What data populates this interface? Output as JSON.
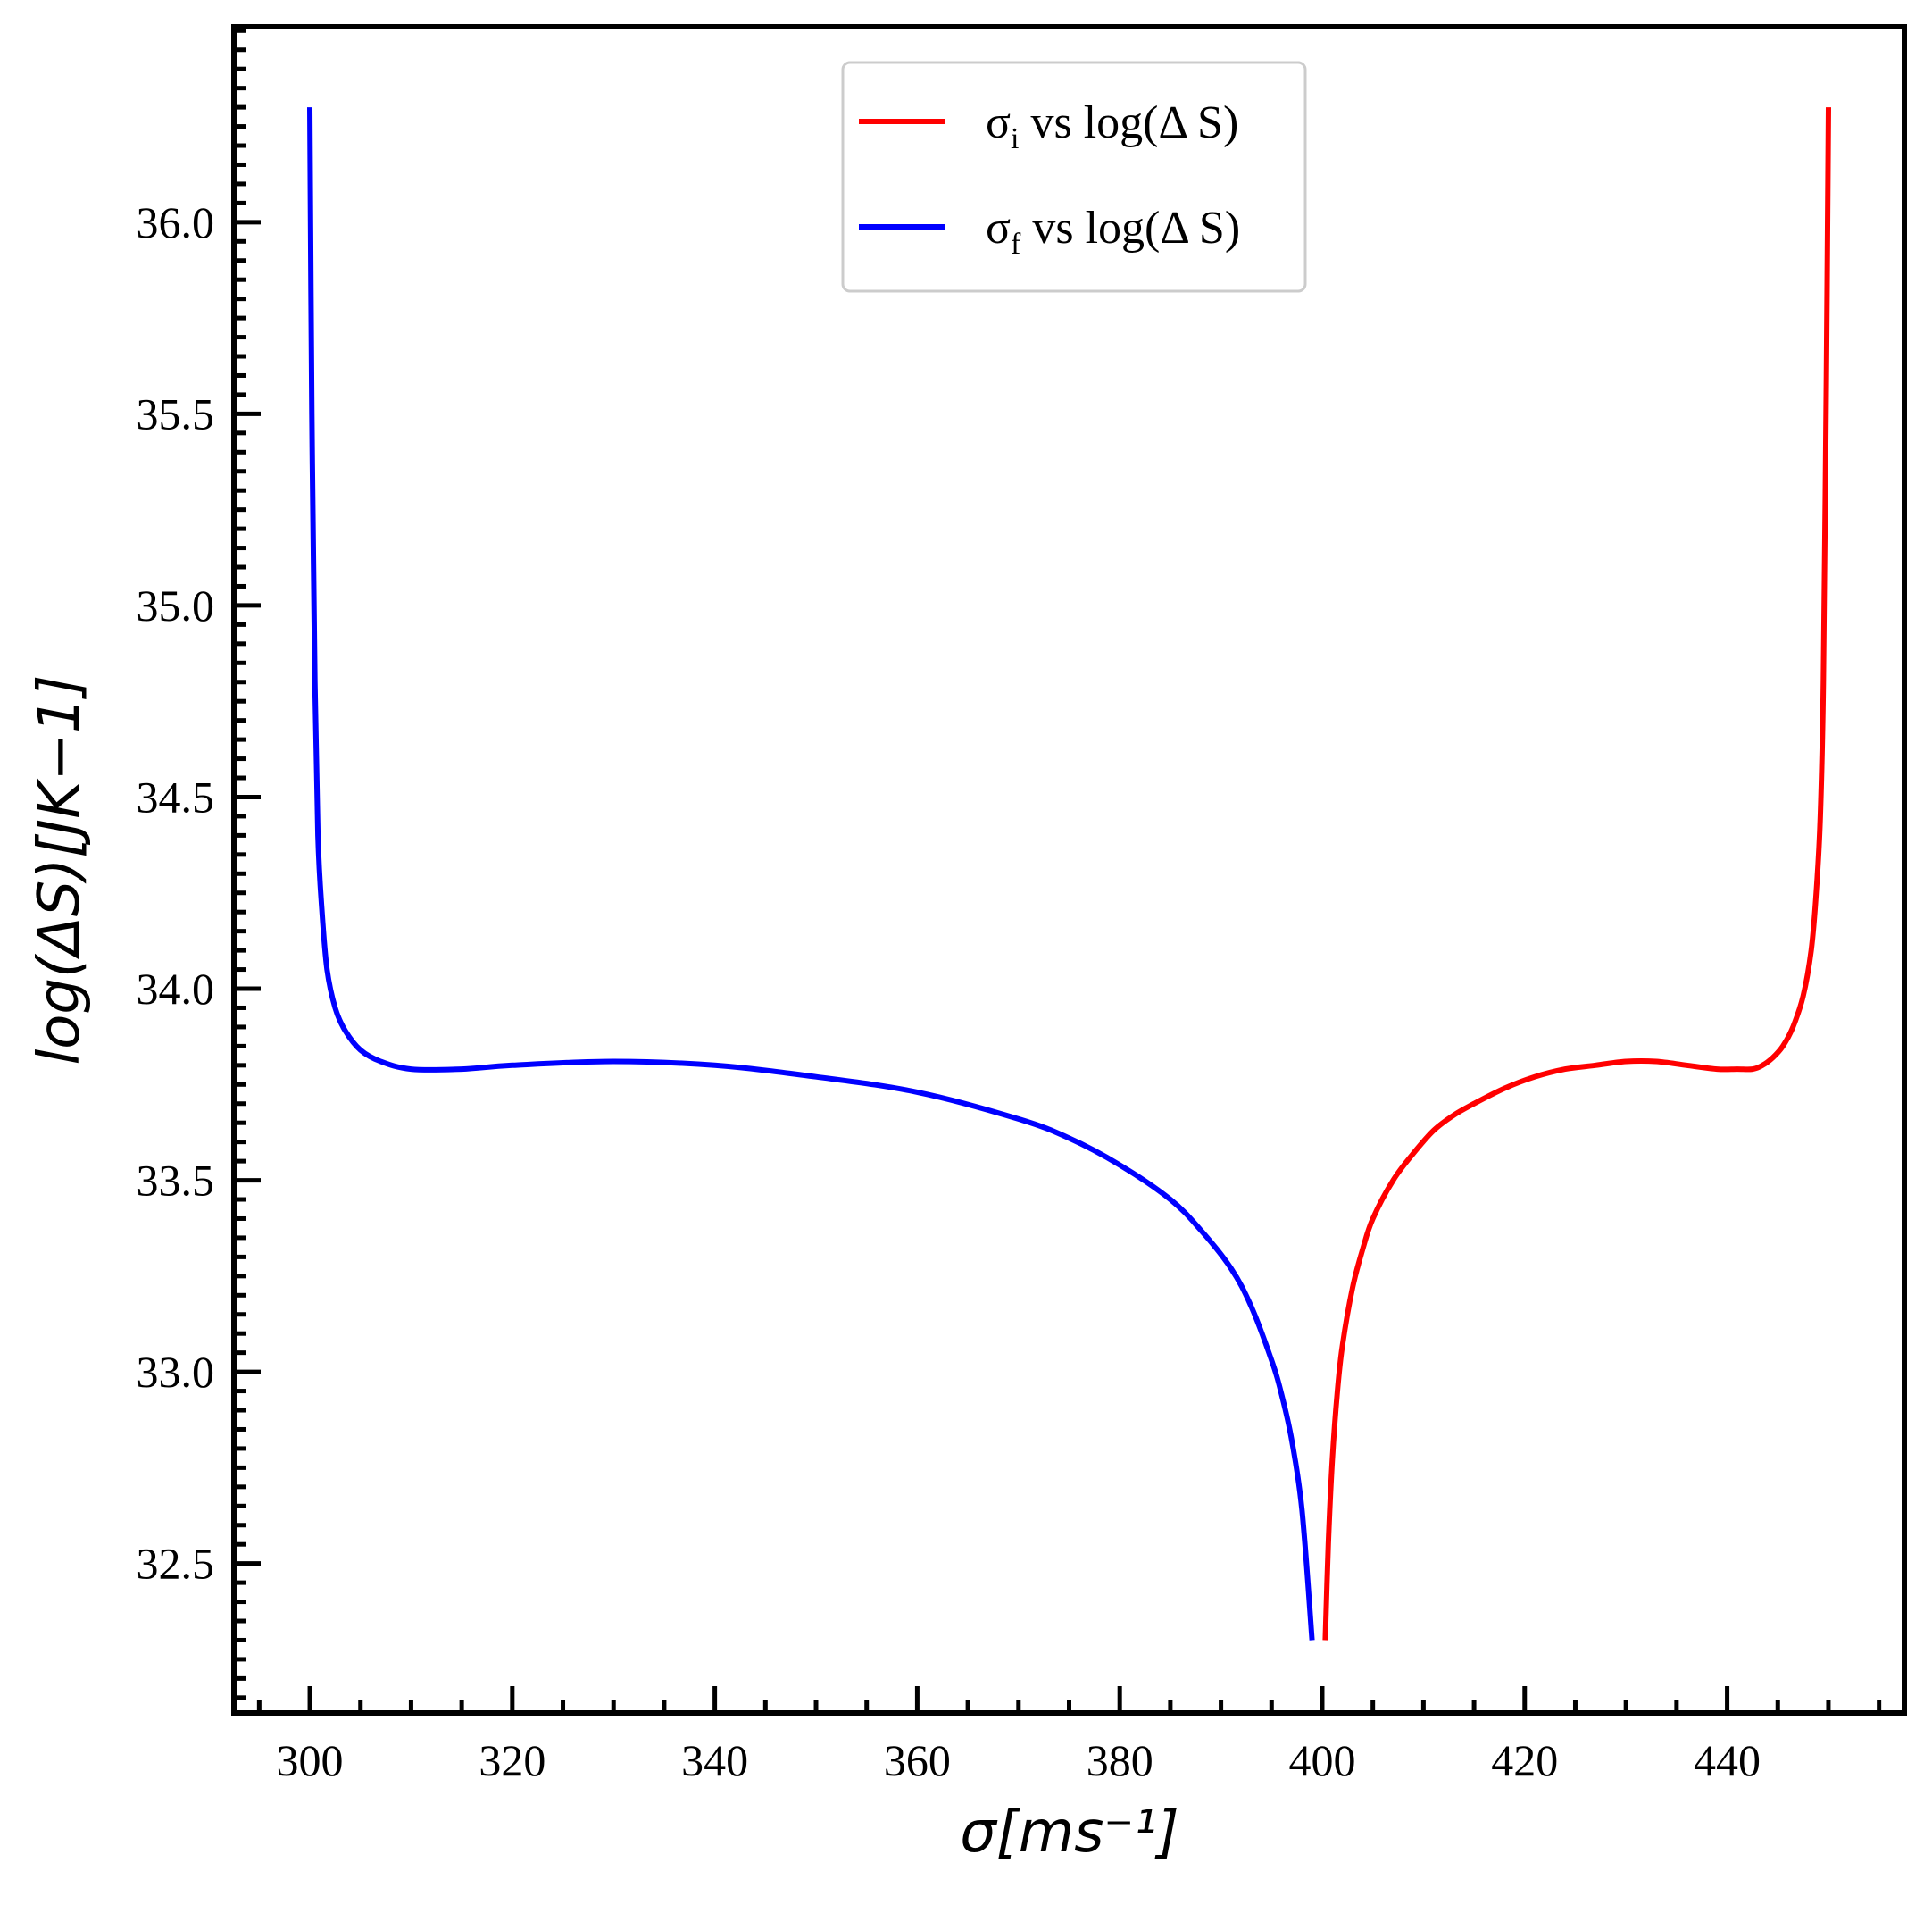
{
  "chart_data": {
    "type": "line",
    "title": "",
    "xlabel": "σ[ms⁻¹]",
    "ylabel": "log(ΔS)[JK−1]",
    "xlim": [
      292.5,
      457.5
    ],
    "ylim": [
      32.11,
      36.51
    ],
    "x_ticks": [
      300,
      320,
      340,
      360,
      380,
      400,
      420,
      440
    ],
    "x_tick_labels": [
      "300",
      "320",
      "340",
      "360",
      "380",
      "400",
      "420",
      "440"
    ],
    "y_ticks": [
      32.5,
      33.0,
      33.5,
      34.0,
      34.5,
      35.0,
      35.5,
      36.0
    ],
    "y_tick_labels": [
      "32.5",
      "33.0",
      "33.5",
      "34.0",
      "34.5",
      "35.0",
      "35.5",
      "36.0"
    ],
    "grid": false,
    "legend_position": "top-center",
    "series": [
      {
        "name": "σi vs log(Δ S)",
        "name_main": "σ",
        "name_sub": "i",
        "name_rest": " vs log(Δ S)",
        "color": "#ff0000",
        "x": [
          400.3,
          400.6,
          401,
          401.5,
          402,
          403,
          404,
          405,
          407,
          409,
          411,
          413,
          415,
          418,
          421,
          424,
          427,
          430,
          433,
          436,
          439,
          441,
          442.5,
          443.5,
          444.5,
          445.5,
          446.5,
          447.5,
          448.3,
          448.8,
          449.2,
          449.5,
          449.8,
          450
        ],
        "y": [
          32.3,
          32.55,
          32.77,
          32.95,
          33.07,
          33.22,
          33.32,
          33.4,
          33.5,
          33.57,
          33.63,
          33.67,
          33.7,
          33.74,
          33.77,
          33.79,
          33.8,
          33.81,
          33.81,
          33.8,
          33.79,
          33.79,
          33.79,
          33.8,
          33.82,
          33.85,
          33.9,
          33.98,
          34.1,
          34.25,
          34.45,
          34.8,
          35.6,
          36.3
        ]
      },
      {
        "name": "σf vs log(Δ S)",
        "name_main": "σ",
        "name_sub": "f",
        "name_rest": " vs log(Δ S)",
        "color": "#0000ff",
        "x": [
          300,
          300.2,
          300.5,
          300.8,
          301.2,
          301.7,
          302.5,
          303.5,
          305,
          307,
          310,
          315,
          320,
          330,
          340,
          350,
          360,
          370,
          375,
          380,
          385,
          388,
          391,
          393,
          395,
          396,
          397,
          398,
          399
        ],
        "y": [
          36.3,
          35.5,
          34.8,
          34.4,
          34.2,
          34.05,
          33.95,
          33.89,
          33.84,
          33.81,
          33.79,
          33.79,
          33.8,
          33.81,
          33.8,
          33.77,
          33.73,
          33.66,
          33.61,
          33.54,
          33.45,
          33.37,
          33.27,
          33.17,
          33.03,
          32.94,
          32.82,
          32.64,
          32.3
        ]
      }
    ]
  }
}
